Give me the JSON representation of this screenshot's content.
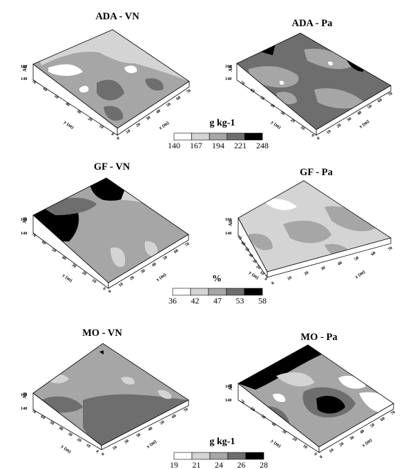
{
  "panels": [
    {
      "id": "ada-vn",
      "title": "ADA - VN",
      "alt_label": "Alt",
      "alt_ticks": [
        "160",
        "140"
      ],
      "x_label": "x (m)",
      "y_label": "y (m)",
      "x_ticks": [
        "0",
        "10",
        "20",
        "30",
        "40",
        "50",
        "60",
        "70"
      ],
      "y_ticks": [
        "70",
        "60",
        "50",
        "40",
        "30",
        "20",
        "10",
        "0"
      ]
    },
    {
      "id": "ada-pa",
      "title": "ADA - Pa",
      "alt_label": "Alt",
      "alt_ticks": [
        "160",
        "140"
      ],
      "x_label": "x (m)",
      "y_label": "y (m)",
      "x_ticks": [
        "0",
        "10",
        "20",
        "30",
        "40",
        "50",
        "60",
        "70"
      ],
      "y_ticks": [
        "70",
        "60",
        "50",
        "40",
        "30",
        "20",
        "10",
        "0"
      ]
    },
    {
      "id": "gf-vn",
      "title": "GF - VN",
      "alt_label": "Alt",
      "alt_ticks": [
        "160",
        "140"
      ],
      "x_label": "x (m)",
      "y_label": "y (m)",
      "x_ticks": [
        "0",
        "10",
        "20",
        "30",
        "40",
        "50",
        "60",
        "70"
      ],
      "y_ticks": [
        "70",
        "60",
        "50",
        "40",
        "30",
        "20",
        "10",
        "0"
      ]
    },
    {
      "id": "gf-pa",
      "title": "GF - Pa",
      "alt_label": "Alt",
      "alt_ticks": [
        "160",
        "140"
      ],
      "x_label": "x (m)",
      "y_label": "y (m)",
      "x_ticks": [
        "0",
        "10",
        "20",
        "30",
        "40",
        "50",
        "60",
        "70"
      ],
      "y_ticks": [
        "70",
        "60",
        "50",
        "40",
        "30",
        "20",
        "10",
        "0"
      ]
    },
    {
      "id": "mo-vn",
      "title": "MO - VN",
      "alt_label": "Alt",
      "alt_ticks": [
        "160",
        "140"
      ],
      "x_label": "x (m)",
      "y_label": "y (m)",
      "x_ticks": [
        "0",
        "10",
        "20",
        "30",
        "40",
        "50",
        "60",
        "70"
      ],
      "y_ticks": [
        "70",
        "60",
        "50",
        "40",
        "30",
        "20",
        "10",
        "0"
      ]
    },
    {
      "id": "mo-pa",
      "title": "MO -  Pa",
      "alt_label": "Alt",
      "alt_ticks": [
        "160",
        "140"
      ],
      "x_label": "x (m)",
      "y_label": "y (m)",
      "x_ticks": [
        "0",
        "10",
        "20",
        "30",
        "40",
        "50",
        "60",
        "70"
      ],
      "y_ticks": [
        "70",
        "60",
        "50",
        "40",
        "30",
        "20",
        "10",
        "0"
      ]
    }
  ],
  "scales": [
    {
      "id": "ada",
      "unit": "g kg-1",
      "ticks": [
        "140",
        "167",
        "194",
        "221",
        "248"
      ],
      "colors": [
        "#ffffff",
        "#d4d4d4",
        "#a6a6a6",
        "#6e6e6e",
        "#000000"
      ]
    },
    {
      "id": "gf",
      "unit": "%",
      "ticks": [
        "36",
        "42",
        "47",
        "53",
        "58"
      ],
      "colors": [
        "#ffffff",
        "#d4d4d4",
        "#a6a6a6",
        "#6e6e6e",
        "#000000"
      ]
    },
    {
      "id": "mo",
      "unit": "g kg-1",
      "ticks": [
        "19",
        "21",
        "24",
        "26",
        "28"
      ],
      "colors": [
        "#ffffff",
        "#d4d4d4",
        "#a6a6a6",
        "#6e6e6e",
        "#000000"
      ]
    }
  ]
}
